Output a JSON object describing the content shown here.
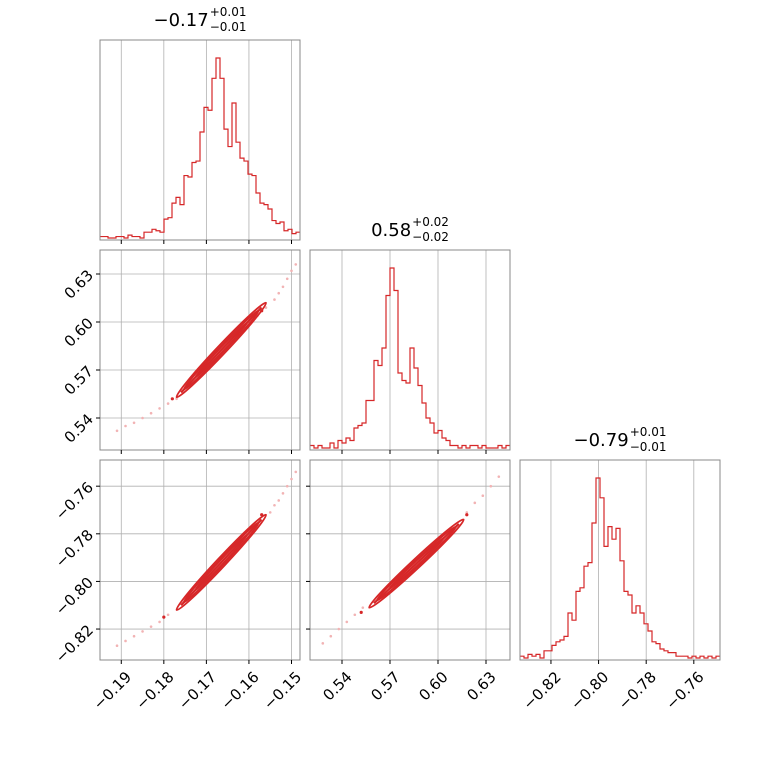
{
  "chart_data": {
    "type": "corner",
    "color": "#d62728",
    "scatter_color": "#f2b3b4",
    "grid": true,
    "parameters": [
      {
        "range": [
          -0.195,
          -0.148
        ],
        "ticks": [
          -0.19,
          -0.18,
          -0.17,
          -0.16,
          -0.15
        ],
        "tick_labels": [
          "−0.19",
          "−0.18",
          "−0.17",
          "−0.16",
          "−0.15"
        ],
        "title": {
          "value": "−0.17",
          "plus": "+0.01",
          "minus": "−0.01"
        }
      },
      {
        "range": [
          0.52,
          0.645
        ],
        "ticks": [
          0.54,
          0.57,
          0.6,
          0.63
        ],
        "tick_labels": [
          "0.54",
          "0.57",
          "0.60",
          "0.63"
        ],
        "title": {
          "value": "0.58",
          "plus": "+0.02",
          "minus": "−0.02"
        }
      },
      {
        "range": [
          -0.833,
          -0.749
        ],
        "ticks": [
          -0.82,
          -0.8,
          -0.78,
          -0.76
        ],
        "tick_labels": [
          "−0.82",
          "−0.80",
          "−0.78",
          "−0.76"
        ],
        "title": {
          "value": "−0.79",
          "plus": "+0.01",
          "minus": "−0.01"
        }
      }
    ],
    "histograms": [
      {
        "start": -0.195,
        "step": 0.00094,
        "counts": [
          1,
          1,
          0,
          0,
          1,
          1,
          0,
          2,
          1,
          1,
          0,
          4,
          4,
          6,
          5,
          4,
          13,
          14,
          24,
          28,
          23,
          43,
          42,
          52,
          53,
          73,
          90,
          88,
          110,
          124,
          110,
          75,
          63,
          93,
          66,
          55,
          53,
          44,
          43,
          31,
          24,
          23,
          20,
          12,
          10,
          11,
          5,
          6,
          3,
          4
        ]
      },
      {
        "start": 0.52,
        "step": 0.0025,
        "counts": [
          1,
          0,
          1,
          0,
          0,
          2,
          0,
          3,
          2,
          4,
          3,
          8,
          9,
          10,
          19,
          19,
          35,
          33,
          40,
          61,
          72,
          63,
          30,
          27,
          26,
          40,
          32,
          25,
          18,
          12,
          10,
          6,
          7,
          4,
          3,
          1,
          1,
          0,
          1,
          0,
          1,
          1,
          0,
          1,
          0,
          0,
          0,
          1,
          0,
          1
        ]
      },
      {
        "start": -0.833,
        "step": 0.00168,
        "counts": [
          1,
          0,
          2,
          1,
          2,
          0,
          4,
          4,
          7,
          9,
          10,
          12,
          25,
          21,
          37,
          39,
          51,
          53,
          75,
          100,
          89,
          62,
          73,
          66,
          72,
          54,
          37,
          35,
          25,
          29,
          25,
          19,
          15,
          9,
          8,
          5,
          4,
          3,
          3,
          1,
          1,
          1,
          0,
          1,
          0,
          1,
          0,
          1,
          0,
          1
        ]
      }
    ],
    "pairs": [
      {
        "x": 0,
        "y": 1,
        "scatter": [
          [
            -0.191,
            0.532
          ],
          [
            -0.189,
            0.535
          ],
          [
            -0.187,
            0.537
          ],
          [
            -0.185,
            0.54
          ],
          [
            -0.183,
            0.543
          ],
          [
            -0.181,
            0.546
          ],
          [
            -0.179,
            0.549
          ],
          [
            -0.177,
            0.552
          ],
          [
            -0.158,
            0.604
          ],
          [
            -0.156,
            0.609
          ],
          [
            -0.154,
            0.614
          ],
          [
            -0.153,
            0.618
          ],
          [
            -0.152,
            0.622
          ],
          [
            -0.151,
            0.627
          ],
          [
            -0.15,
            0.632
          ],
          [
            -0.149,
            0.636
          ]
        ],
        "dark_points": [
          [
            -0.178,
            0.552
          ],
          [
            -0.157,
            0.607
          ]
        ],
        "band": {
          "x0": -0.177,
          "y0": 0.553,
          "x1": -0.156,
          "y1": 0.612,
          "half_width": 0.0015
        }
      },
      {
        "x": 0,
        "y": 2,
        "scatter": [
          [
            -0.191,
            -0.827
          ],
          [
            -0.189,
            -0.825
          ],
          [
            -0.187,
            -0.823
          ],
          [
            -0.185,
            -0.821
          ],
          [
            -0.183,
            -0.819
          ],
          [
            -0.181,
            -0.817
          ],
          [
            -0.179,
            -0.814
          ],
          [
            -0.155,
            -0.771
          ],
          [
            -0.154,
            -0.768
          ],
          [
            -0.153,
            -0.766
          ],
          [
            -0.152,
            -0.763
          ],
          [
            -0.151,
            -0.76
          ],
          [
            -0.15,
            -0.757
          ],
          [
            -0.149,
            -0.754
          ]
        ],
        "dark_points": [
          [
            -0.18,
            -0.815
          ],
          [
            -0.157,
            -0.772
          ]
        ],
        "band": {
          "x0": -0.177,
          "y0": -0.812,
          "x1": -0.156,
          "y1": -0.772,
          "half_width": 0.0015
        }
      },
      {
        "x": 1,
        "y": 2,
        "scatter": [
          [
            0.528,
            -0.826
          ],
          [
            0.533,
            -0.823
          ],
          [
            0.538,
            -0.82
          ],
          [
            0.543,
            -0.817
          ],
          [
            0.548,
            -0.814
          ],
          [
            0.553,
            -0.811
          ],
          [
            0.618,
            -0.771
          ],
          [
            0.623,
            -0.767
          ],
          [
            0.628,
            -0.764
          ],
          [
            0.633,
            -0.76
          ],
          [
            0.638,
            -0.756
          ]
        ],
        "dark_points": [
          [
            0.552,
            -0.813
          ],
          [
            0.618,
            -0.772
          ]
        ],
        "band": {
          "x0": 0.557,
          "y0": -0.811,
          "x1": 0.616,
          "y1": -0.774,
          "half_width": 0.0015
        }
      }
    ]
  }
}
